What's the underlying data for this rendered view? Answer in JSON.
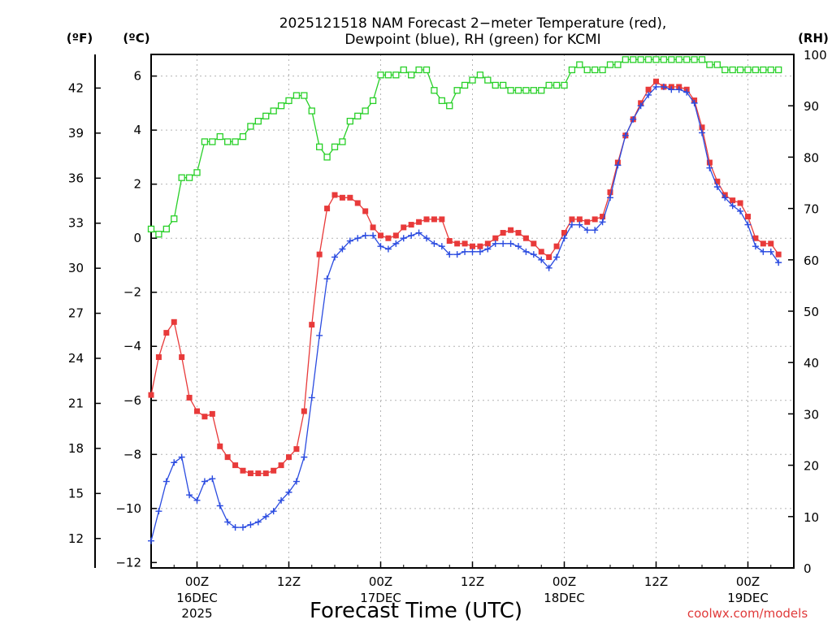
{
  "chart_data": {
    "type": "line",
    "title_line1": "2025121518 NAM Forecast 2−meter Temperature (red),",
    "title_line2": "Dewpoint (blue), RH (green) for KCMI",
    "xlabel": "Forecast Time (UTC)",
    "credit": "coolwx.com/models",
    "units": {
      "fahrenheit": "(ºF)",
      "celsius": "(ºC)",
      "rh": "(RH)"
    },
    "x_unit": "forecast hour (0 = 2025-12-15 18Z)",
    "xlim": [
      0,
      84
    ],
    "ylim_celsius": [
      -12.2,
      6.8
    ],
    "ylim_rh": [
      0,
      100
    ],
    "celsius_ticks": [
      "-12",
      "-10",
      "-8",
      "-6",
      "-4",
      "-2",
      "0",
      "2",
      "4",
      "6"
    ],
    "fahrenheit_ticks": [
      "12",
      "15",
      "18",
      "21",
      "24",
      "27",
      "30",
      "33",
      "36",
      "39",
      "42"
    ],
    "rh_ticks": [
      "0",
      "10",
      "20",
      "30",
      "40",
      "50",
      "60",
      "70",
      "80",
      "90",
      "100"
    ],
    "x_ticks": [
      {
        "hour": 6,
        "label": "00Z",
        "day": "16DEC",
        "year": "2025"
      },
      {
        "hour": 18,
        "label": "12Z",
        "day": "",
        "year": ""
      },
      {
        "hour": 30,
        "label": "00Z",
        "day": "17DEC",
        "year": ""
      },
      {
        "hour": 42,
        "label": "12Z",
        "day": "",
        "year": ""
      },
      {
        "hour": 54,
        "label": "00Z",
        "day": "18DEC",
        "year": ""
      },
      {
        "hour": 66,
        "label": "12Z",
        "day": "",
        "year": ""
      },
      {
        "hour": 78,
        "label": "00Z",
        "day": "19DEC",
        "year": ""
      }
    ],
    "series": [
      {
        "name": "Temperature",
        "axis": "celsius",
        "color": "#e83a3a",
        "marker": "filled-square",
        "values": [
          -5.8,
          -4.4,
          -3.5,
          -3.1,
          -4.4,
          -5.9,
          -6.4,
          -6.6,
          -6.5,
          -7.7,
          -8.1,
          -8.4,
          -8.6,
          -8.7,
          -8.7,
          -8.7,
          -8.6,
          -8.4,
          -8.1,
          -7.8,
          -6.4,
          -3.2,
          -0.6,
          1.1,
          1.6,
          1.5,
          1.5,
          1.3,
          1.0,
          0.4,
          0.1,
          0.0,
          0.1,
          0.4,
          0.5,
          0.6,
          0.7,
          0.7,
          0.7,
          -0.1,
          -0.2,
          -0.2,
          -0.3,
          -0.3,
          -0.2,
          0.0,
          0.2,
          0.3,
          0.2,
          0.0,
          -0.2,
          -0.5,
          -0.7,
          -0.3,
          0.2,
          0.7,
          0.7,
          0.6,
          0.7,
          0.8,
          1.7,
          2.8,
          3.8,
          4.4,
          5.0,
          5.5,
          5.8,
          5.6,
          5.6,
          5.6,
          5.5,
          5.1,
          4.1,
          2.8,
          2.1,
          1.6,
          1.4,
          1.3,
          0.8,
          0.0,
          -0.2,
          -0.2,
          -0.6
        ]
      },
      {
        "name": "Dewpoint",
        "axis": "celsius",
        "color": "#2a4be0",
        "marker": "plus",
        "values": [
          -11.2,
          -10.1,
          -9.0,
          -8.3,
          -8.1,
          -9.5,
          -9.7,
          -9.0,
          -8.9,
          -9.9,
          -10.5,
          -10.7,
          -10.7,
          -10.6,
          -10.5,
          -10.3,
          -10.1,
          -9.7,
          -9.4,
          -9.0,
          -8.1,
          -5.9,
          -3.6,
          -1.5,
          -0.7,
          -0.4,
          -0.1,
          0.0,
          0.1,
          0.1,
          -0.3,
          -0.4,
          -0.2,
          0.0,
          0.1,
          0.2,
          0.0,
          -0.2,
          -0.3,
          -0.6,
          -0.6,
          -0.5,
          -0.5,
          -0.5,
          -0.4,
          -0.2,
          -0.2,
          -0.2,
          -0.3,
          -0.5,
          -0.6,
          -0.8,
          -1.1,
          -0.7,
          0.0,
          0.5,
          0.5,
          0.3,
          0.3,
          0.6,
          1.5,
          2.7,
          3.8,
          4.4,
          4.9,
          5.3,
          5.6,
          5.6,
          5.5,
          5.5,
          5.4,
          5.0,
          3.9,
          2.6,
          1.9,
          1.5,
          1.2,
          1.0,
          0.5,
          -0.3,
          -0.5,
          -0.5,
          -0.9
        ]
      },
      {
        "name": "RH",
        "axis": "rh",
        "color": "#28d028",
        "marker": "open-square",
        "values": [
          66,
          65,
          66,
          68,
          76,
          76,
          77,
          83,
          83,
          84,
          83,
          83,
          84,
          86,
          87,
          88,
          89,
          90,
          91,
          92,
          92,
          89,
          82,
          80,
          82,
          83,
          87,
          88,
          89,
          91,
          96,
          96,
          96,
          97,
          96,
          97,
          97,
          93,
          91,
          90,
          93,
          94,
          95,
          96,
          95,
          94,
          94,
          93,
          93,
          93,
          93,
          93,
          94,
          94,
          94,
          97,
          98,
          97,
          97,
          97,
          98,
          98,
          99,
          99,
          99,
          99,
          99,
          99,
          99,
          99,
          99,
          99,
          99,
          98,
          98,
          97,
          97,
          97,
          97,
          97,
          97,
          97,
          97
        ]
      }
    ]
  }
}
